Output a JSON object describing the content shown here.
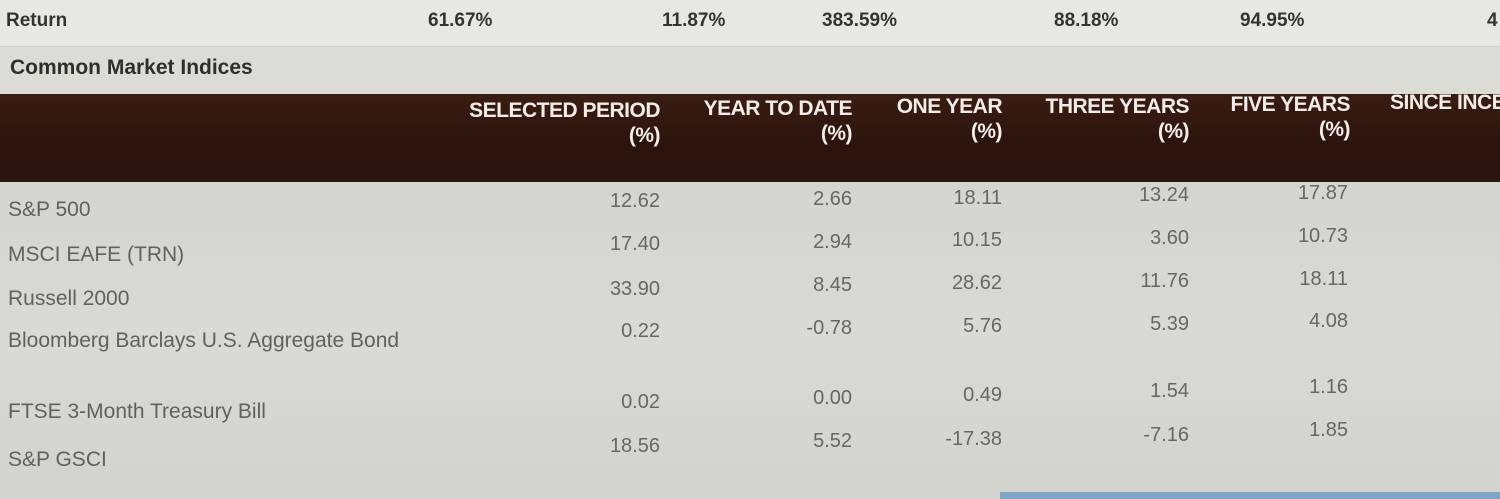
{
  "return_row": {
    "label": "Return",
    "values": [
      "61.67%",
      "11.87%",
      "383.59%",
      "88.18%",
      "94.95%",
      "4"
    ]
  },
  "section_title": "Common Market Indices",
  "columns": [
    {
      "line1": "SELECTED PERIOD",
      "line2": "(%)"
    },
    {
      "line1": "YEAR TO DATE",
      "line2": "(%)"
    },
    {
      "line1": "ONE YEAR",
      "line2": "(%)"
    },
    {
      "line1": "THREE YEARS",
      "line2": "(%)"
    },
    {
      "line1": "FIVE YEARS",
      "line2": "(%)"
    },
    {
      "line1": "SINCE INCE",
      "line2": ""
    }
  ],
  "rows": [
    {
      "label": "S&P 500",
      "values": [
        "12.62",
        "2.66",
        "18.11",
        "13.24",
        "17.87"
      ]
    },
    {
      "label": "MSCI EAFE (TRN)",
      "values": [
        "17.40",
        "2.94",
        "10.15",
        "3.60",
        "10.73"
      ]
    },
    {
      "label": "Russell 2000",
      "values": [
        "33.90",
        "8.45",
        "28.62",
        "11.76",
        "18.11"
      ]
    },
    {
      "label": "Bloomberg Barclays U.S. Aggregate Bond",
      "values": [
        "0.22",
        "-0.78",
        "5.76",
        "5.39",
        "4.08"
      ]
    },
    {
      "label": "FTSE 3-Month Treasury Bill",
      "values": [
        "0.02",
        "0.00",
        "0.49",
        "1.54",
        "1.16"
      ]
    },
    {
      "label": "S&P GSCI",
      "values": [
        "18.56",
        "5.52",
        "-17.38",
        "-7.16",
        "1.85"
      ]
    }
  ]
}
